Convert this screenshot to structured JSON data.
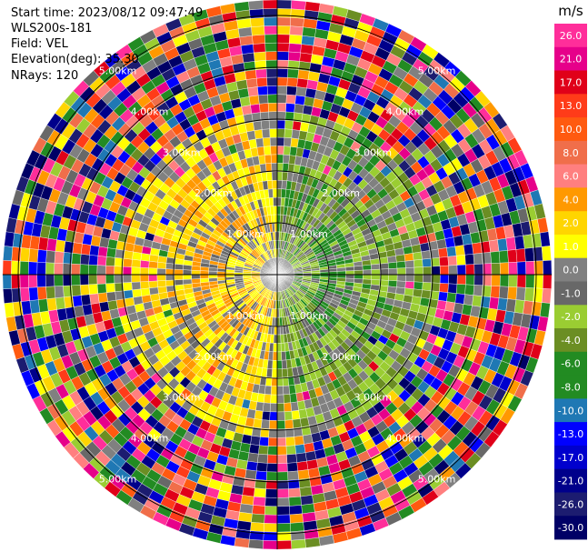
{
  "info": {
    "start_time": "Start time: 2023/08/12 09:47:49",
    "instrument": "WLS200s-181",
    "field": "Field: VEL",
    "elevation": "Elevation(deg): 35.30",
    "nrays": "NRays: 120"
  },
  "chart_data": {
    "type": "heatmap",
    "projection": "polar (PPI)",
    "n_rays": 120,
    "elevation_deg": 35.3,
    "field": "VEL",
    "range_rings": [
      "1.00km",
      "2.00km",
      "3.00km",
      "4.00km",
      "5.00km"
    ],
    "max_range_km": 5.3,
    "colorbar": {
      "unit": "m/s",
      "tick_labels": [
        "26.0",
        "21.0",
        "17.0",
        "13.0",
        "10.0",
        "8.0",
        "6.0",
        "4.0",
        "2.0",
        "1.0",
        "0.0",
        "-1.0",
        "-2.0",
        "-4.0",
        "-6.0",
        "-8.0",
        "-10.0",
        "-13.0",
        "-17.0",
        "-21.0",
        "-26.0",
        "-30.0"
      ],
      "colors": [
        "#ff2e9a",
        "#e6008a",
        "#e00019",
        "#ff3b19",
        "#ff5a10",
        "#f06e4a",
        "#ff7f7f",
        "#ff9900",
        "#ffd500",
        "#ffff00",
        "#808080",
        "#686868",
        "#9acd32",
        "#6b8e23",
        "#228b22",
        "#228b22",
        "#1f78b4",
        "#0000ff",
        "#0000cd",
        "#00008b",
        "#1c1c70",
        "#000066"
      ]
    },
    "pattern_summary": {
      "west_half_near": "positive 2 to 6 m/s (yellow / orange)",
      "east_half_near": "negative -2 to -6 m/s (green)",
      "beyond_3km": "noisy, full color range"
    }
  }
}
